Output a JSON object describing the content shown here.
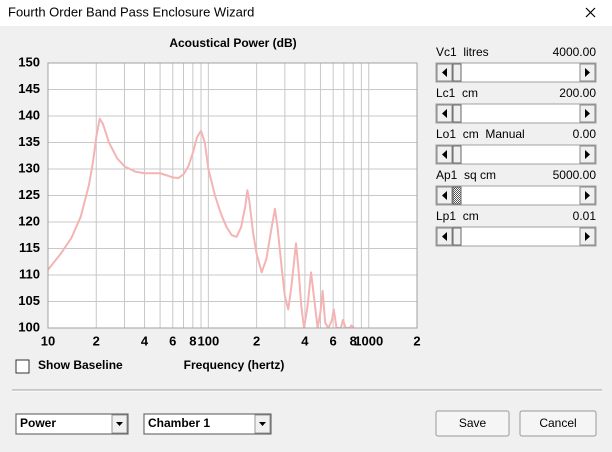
{
  "window": {
    "title": "Fourth Order Band Pass Enclosure Wizard"
  },
  "chart_data": {
    "type": "line",
    "title": "Acoustical Power (dB)",
    "x_label": "Frequency (hertz)",
    "xscale": "log",
    "grid": true,
    "xlim": [
      10,
      2000
    ],
    "ylim": [
      100,
      150
    ],
    "xticks": [
      {
        "value": 10,
        "label": "10"
      },
      {
        "value": 20,
        "label": "2"
      },
      {
        "value": 30,
        "label": null
      },
      {
        "value": 40,
        "label": "4"
      },
      {
        "value": 50,
        "label": null
      },
      {
        "value": 60,
        "label": "6"
      },
      {
        "value": 70,
        "label": null
      },
      {
        "value": 80,
        "label": "8"
      },
      {
        "value": 90,
        "label": null
      },
      {
        "value": 100,
        "label": "100"
      },
      {
        "value": 200,
        "label": "2"
      },
      {
        "value": 300,
        "label": null
      },
      {
        "value": 400,
        "label": "4"
      },
      {
        "value": 500,
        "label": null
      },
      {
        "value": 600,
        "label": "6"
      },
      {
        "value": 700,
        "label": null
      },
      {
        "value": 800,
        "label": "8"
      },
      {
        "value": 900,
        "label": null
      },
      {
        "value": 1000,
        "label": "1000"
      },
      {
        "value": 2000,
        "label": "2"
      }
    ],
    "yticks": [
      100,
      105,
      110,
      115,
      120,
      125,
      130,
      135,
      140,
      145,
      150
    ],
    "series": [
      {
        "name": "Power",
        "color": "#f4b4b4",
        "x": [
          10,
          12,
          14,
          16,
          18,
          19,
          20,
          21,
          22,
          24,
          27,
          30,
          35,
          40,
          50,
          55,
          60,
          65,
          70,
          75,
          80,
          85,
          90,
          95,
          100,
          110,
          120,
          130,
          140,
          150,
          160,
          170,
          175,
          180,
          190,
          200,
          215,
          230,
          245,
          260,
          270,
          285,
          300,
          315,
          330,
          352,
          365,
          380,
          395,
          415,
          437,
          455,
          480,
          500,
          516,
          535,
          560,
          590,
          605,
          630,
          670,
          690,
          720,
          760,
          780,
          810
        ],
        "values": [
          111,
          114,
          117,
          121,
          127,
          131,
          136,
          139.5,
          138.5,
          135,
          132,
          130.5,
          129.5,
          129.2,
          129.2,
          128.8,
          128.4,
          128.3,
          129,
          130.5,
          133,
          136,
          137.2,
          135,
          130,
          125,
          121.5,
          119,
          117.5,
          117.2,
          119,
          123,
          126,
          124,
          118,
          114,
          110.5,
          113,
          118,
          122.5,
          119,
          112,
          106,
          103.5,
          108,
          116,
          111,
          104,
          100,
          104,
          110.5,
          106,
          100,
          103,
          107,
          101,
          100,
          101.5,
          103.5,
          100,
          100,
          101.5,
          100,
          100,
          100.5,
          100
        ]
      }
    ]
  },
  "parameters": [
    {
      "label": "Vc1  litres",
      "value": "4000.00"
    },
    {
      "label": "Lc1  cm",
      "value": "200.00"
    },
    {
      "label": "Lo1  cm  Manual",
      "value": "0.00"
    },
    {
      "label": "Ap1  sq cm",
      "value": "5000.00"
    },
    {
      "label": "Lp1  cm",
      "value": "0.01"
    }
  ],
  "show_baseline": "Show Baseline",
  "dropdowns": [
    "Power",
    "Chamber 1"
  ],
  "buttons": [
    "Save",
    "Cancel"
  ]
}
